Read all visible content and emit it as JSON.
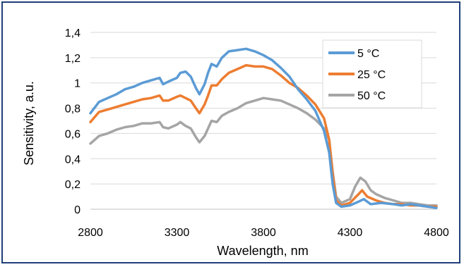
{
  "chart_data": {
    "type": "line",
    "title": "",
    "xlabel": "Wavelength, nm",
    "ylabel": "Sensitivity, a.u.",
    "xlim": [
      2800,
      4800
    ],
    "ylim": [
      0,
      1.4
    ],
    "xticks": [
      "2800",
      "3300",
      "3800",
      "4300",
      "4800"
    ],
    "yticks": [
      "0",
      "0,2",
      "0,4",
      "0,6",
      "0,8",
      "1",
      "1,2",
      "1,4"
    ],
    "grid": "horizontal",
    "legend_position": "top-right",
    "series": [
      {
        "name": "5 °C",
        "color": "#5b9bd5",
        "points": [
          [
            2800,
            0.76
          ],
          [
            2850,
            0.85
          ],
          [
            2900,
            0.88
          ],
          [
            2950,
            0.91
          ],
          [
            3000,
            0.95
          ],
          [
            3050,
            0.97
          ],
          [
            3100,
            1.0
          ],
          [
            3150,
            1.02
          ],
          [
            3200,
            1.04
          ],
          [
            3220,
            0.99
          ],
          [
            3250,
            1.01
          ],
          [
            3300,
            1.04
          ],
          [
            3320,
            1.08
          ],
          [
            3350,
            1.09
          ],
          [
            3380,
            1.05
          ],
          [
            3410,
            0.96
          ],
          [
            3430,
            0.91
          ],
          [
            3460,
            0.99
          ],
          [
            3480,
            1.08
          ],
          [
            3500,
            1.15
          ],
          [
            3530,
            1.13
          ],
          [
            3560,
            1.2
          ],
          [
            3600,
            1.25
          ],
          [
            3650,
            1.26
          ],
          [
            3700,
            1.27
          ],
          [
            3750,
            1.25
          ],
          [
            3800,
            1.22
          ],
          [
            3850,
            1.18
          ],
          [
            3900,
            1.12
          ],
          [
            3950,
            1.05
          ],
          [
            4000,
            0.95
          ],
          [
            4050,
            0.87
          ],
          [
            4100,
            0.78
          ],
          [
            4150,
            0.62
          ],
          [
            4180,
            0.45
          ],
          [
            4200,
            0.2
          ],
          [
            4220,
            0.05
          ],
          [
            4250,
            0.02
          ],
          [
            4300,
            0.03
          ],
          [
            4350,
            0.06
          ],
          [
            4380,
            0.08
          ],
          [
            4420,
            0.04
          ],
          [
            4480,
            0.05
          ],
          [
            4550,
            0.04
          ],
          [
            4600,
            0.03
          ],
          [
            4650,
            0.04
          ],
          [
            4700,
            0.03
          ],
          [
            4750,
            0.02
          ],
          [
            4800,
            0.01
          ]
        ]
      },
      {
        "name": "25 °C",
        "color": "#ed7d31",
        "points": [
          [
            2800,
            0.69
          ],
          [
            2850,
            0.77
          ],
          [
            2900,
            0.79
          ],
          [
            2950,
            0.81
          ],
          [
            3000,
            0.83
          ],
          [
            3050,
            0.85
          ],
          [
            3100,
            0.87
          ],
          [
            3150,
            0.88
          ],
          [
            3200,
            0.9
          ],
          [
            3220,
            0.86
          ],
          [
            3250,
            0.86
          ],
          [
            3300,
            0.89
          ],
          [
            3320,
            0.9
          ],
          [
            3350,
            0.88
          ],
          [
            3380,
            0.86
          ],
          [
            3410,
            0.8
          ],
          [
            3430,
            0.76
          ],
          [
            3460,
            0.83
          ],
          [
            3480,
            0.9
          ],
          [
            3500,
            0.98
          ],
          [
            3530,
            0.98
          ],
          [
            3560,
            1.03
          ],
          [
            3600,
            1.08
          ],
          [
            3650,
            1.11
          ],
          [
            3700,
            1.14
          ],
          [
            3750,
            1.13
          ],
          [
            3800,
            1.13
          ],
          [
            3850,
            1.11
          ],
          [
            3900,
            1.06
          ],
          [
            3950,
            1.0
          ],
          [
            4000,
            0.96
          ],
          [
            4050,
            0.9
          ],
          [
            4100,
            0.83
          ],
          [
            4150,
            0.72
          ],
          [
            4180,
            0.55
          ],
          [
            4200,
            0.28
          ],
          [
            4220,
            0.07
          ],
          [
            4250,
            0.03
          ],
          [
            4300,
            0.05
          ],
          [
            4350,
            0.12
          ],
          [
            4370,
            0.15
          ],
          [
            4400,
            0.1
          ],
          [
            4450,
            0.07
          ],
          [
            4500,
            0.05
          ],
          [
            4550,
            0.04
          ],
          [
            4600,
            0.04
          ],
          [
            4650,
            0.03
          ],
          [
            4700,
            0.03
          ],
          [
            4750,
            0.02
          ],
          [
            4800,
            0.02
          ]
        ]
      },
      {
        "name": "50 °C",
        "color": "#a5a5a5",
        "points": [
          [
            2800,
            0.52
          ],
          [
            2850,
            0.58
          ],
          [
            2900,
            0.6
          ],
          [
            2950,
            0.63
          ],
          [
            3000,
            0.65
          ],
          [
            3050,
            0.66
          ],
          [
            3100,
            0.68
          ],
          [
            3150,
            0.68
          ],
          [
            3200,
            0.69
          ],
          [
            3220,
            0.65
          ],
          [
            3250,
            0.64
          ],
          [
            3300,
            0.67
          ],
          [
            3320,
            0.69
          ],
          [
            3350,
            0.66
          ],
          [
            3380,
            0.64
          ],
          [
            3410,
            0.57
          ],
          [
            3430,
            0.53
          ],
          [
            3460,
            0.58
          ],
          [
            3480,
            0.64
          ],
          [
            3500,
            0.7
          ],
          [
            3530,
            0.69
          ],
          [
            3560,
            0.74
          ],
          [
            3600,
            0.77
          ],
          [
            3650,
            0.8
          ],
          [
            3700,
            0.84
          ],
          [
            3750,
            0.86
          ],
          [
            3800,
            0.88
          ],
          [
            3850,
            0.87
          ],
          [
            3900,
            0.86
          ],
          [
            3950,
            0.83
          ],
          [
            4000,
            0.8
          ],
          [
            4050,
            0.76
          ],
          [
            4100,
            0.71
          ],
          [
            4150,
            0.64
          ],
          [
            4180,
            0.55
          ],
          [
            4200,
            0.3
          ],
          [
            4220,
            0.1
          ],
          [
            4250,
            0.05
          ],
          [
            4300,
            0.08
          ],
          [
            4330,
            0.18
          ],
          [
            4360,
            0.25
          ],
          [
            4390,
            0.22
          ],
          [
            4420,
            0.15
          ],
          [
            4450,
            0.12
          ],
          [
            4500,
            0.09
          ],
          [
            4550,
            0.07
          ],
          [
            4600,
            0.05
          ],
          [
            4650,
            0.05
          ],
          [
            4700,
            0.04
          ],
          [
            4750,
            0.03
          ],
          [
            4800,
            0.03
          ]
        ]
      }
    ]
  }
}
